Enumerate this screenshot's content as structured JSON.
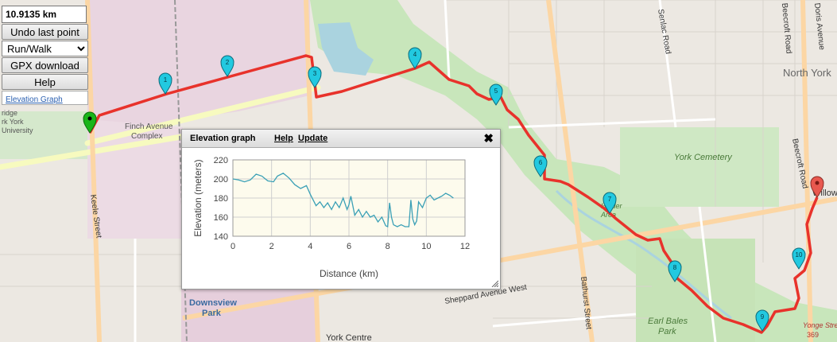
{
  "panel": {
    "distance": "10.9135 km",
    "undo_label": "Undo last point",
    "mode_value": "Run/Walk",
    "gpx_label": "GPX download",
    "help_label": "Help",
    "elevation_link": "Elevation Graph"
  },
  "map_labels": {
    "finch_complex_1": "Finch Avenue",
    "finch_complex_2": "Complex",
    "york_univ_1": "ridge",
    "york_univ_2": "rk York",
    "york_univ_3": "University",
    "keele": "Keele Street",
    "senlac": "Senlac Road",
    "beecroft_1": "Beecroft Road",
    "beecroft_2": "Beecroft Road",
    "doris": "Doris Avenue",
    "north_york": "North York",
    "york_cemetery": "York Cemetery",
    "hinder_1": "Hinder",
    "hinder_2": "Area",
    "bathurst": "Bathurst Street",
    "sheppard": "Sheppard Avenue West",
    "downsview_1": "Downsview",
    "downsview_2": "Park",
    "york_centre": "York Centre",
    "earl_bales_1": "Earl Bales",
    "earl_bales_2": "Park",
    "willow": "Willow",
    "yonge_1": "Yonge Stre",
    "yonge_2": "369"
  },
  "markers": [
    "1",
    "2",
    "3",
    "4",
    "5",
    "6",
    "7",
    "8",
    "9",
    "10"
  ],
  "colors": {
    "route": "#e8322b",
    "marker_fill": "#22c9e0",
    "start_marker": "#19b519",
    "end_marker": "#e8584f",
    "chart_line": "#3aa0b6",
    "chart_bg": "#fdfbed"
  },
  "elevation_window": {
    "title": "Elevation graph",
    "help": "Help",
    "update": "Update",
    "close_icon": "close-icon"
  },
  "chart_data": {
    "type": "line",
    "xlabel": "Distance (km)",
    "ylabel": "Elevation (meters)",
    "xlim": [
      0,
      12
    ],
    "ylim": [
      140,
      220
    ],
    "xticks": [
      "0",
      "2",
      "4",
      "6",
      "8",
      "10",
      "12"
    ],
    "yticks": [
      "140",
      "160",
      "180",
      "200",
      "220"
    ],
    "grid": true,
    "x": [
      0,
      0.3,
      0.6,
      0.9,
      1.2,
      1.5,
      1.8,
      2.1,
      2.3,
      2.6,
      2.9,
      3.2,
      3.5,
      3.8,
      4.0,
      4.2,
      4.3,
      4.5,
      4.7,
      4.9,
      5.1,
      5.3,
      5.5,
      5.7,
      5.9,
      6.0,
      6.1,
      6.3,
      6.5,
      6.7,
      6.9,
      7.1,
      7.3,
      7.5,
      7.7,
      7.9,
      8.0,
      8.1,
      8.2,
      8.3,
      8.5,
      8.7,
      8.9,
      9.1,
      9.2,
      9.3,
      9.4,
      9.5,
      9.6,
      9.8,
      10.0,
      10.2,
      10.4,
      10.6,
      10.8,
      11.0,
      11.2,
      11.4
    ],
    "y": [
      200,
      199,
      197,
      199,
      205,
      203,
      198,
      197,
      203,
      206,
      201,
      194,
      190,
      193,
      184,
      176,
      172,
      176,
      170,
      175,
      168,
      176,
      170,
      180,
      168,
      173,
      182,
      162,
      168,
      160,
      166,
      160,
      162,
      155,
      160,
      151,
      150,
      175,
      160,
      152,
      150,
      152,
      150,
      150,
      178,
      158,
      152,
      156,
      176,
      170,
      180,
      183,
      178,
      180,
      182,
      185,
      183,
      180
    ]
  }
}
